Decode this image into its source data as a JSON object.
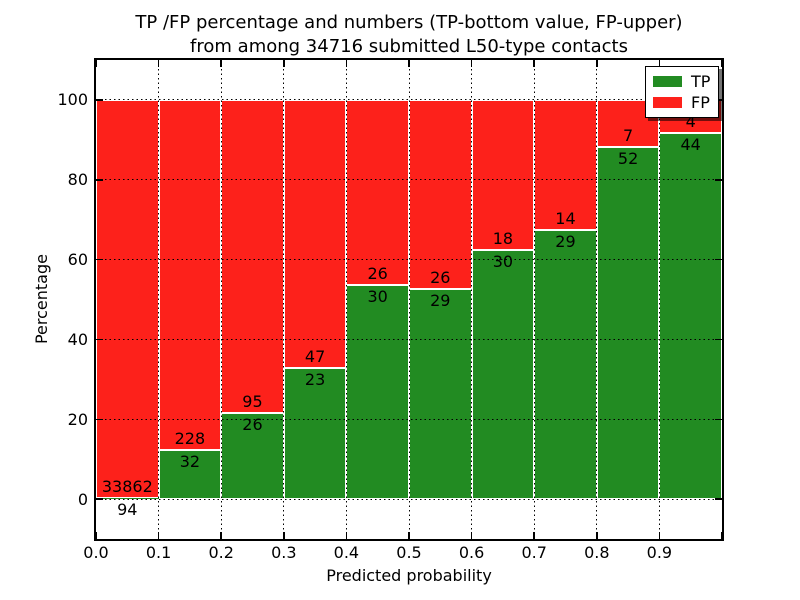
{
  "chart_data": {
    "type": "stacked_bar",
    "title_line1": "TP /FP percentage and numbers (TP-bottom value, FP-upper)",
    "title_line2": "from among 34716 submitted L50-type contacts",
    "total_submitted": 34716,
    "xlabel": "Predicted probability",
    "ylabel": "Percentage",
    "xlim": [
      0.0,
      1.0
    ],
    "ylim": [
      -10,
      110
    ],
    "stack_total_percent": 100,
    "bin_edges": [
      0.0,
      0.1,
      0.2,
      0.3,
      0.4,
      0.5,
      0.6,
      0.7,
      0.8,
      0.9,
      1.0
    ],
    "categories": [
      "0.0-0.1",
      "0.1-0.2",
      "0.2-0.3",
      "0.3-0.4",
      "0.4-0.5",
      "0.5-0.6",
      "0.6-0.7",
      "0.7-0.8",
      "0.8-0.9",
      "0.9-1.0"
    ],
    "series": [
      {
        "name": "TP",
        "color": "#228b22",
        "counts": [
          94,
          32,
          26,
          23,
          30,
          29,
          30,
          29,
          52,
          44
        ]
      },
      {
        "name": "FP",
        "color": "#fd211b",
        "counts": [
          33862,
          228,
          95,
          47,
          26,
          26,
          18,
          14,
          7,
          4
        ]
      }
    ],
    "tp_percentages": [
      0.28,
      12.31,
      21.49,
      32.86,
      53.57,
      52.73,
      62.5,
      67.44,
      88.14,
      91.67
    ],
    "x_ticks": [
      {
        "v": 0.0,
        "label": "0.0"
      },
      {
        "v": 0.1,
        "label": "0.1"
      },
      {
        "v": 0.2,
        "label": "0.2"
      },
      {
        "v": 0.3,
        "label": "0.3"
      },
      {
        "v": 0.4,
        "label": "0.4"
      },
      {
        "v": 0.5,
        "label": "0.5"
      },
      {
        "v": 0.6,
        "label": "0.6"
      },
      {
        "v": 0.7,
        "label": "0.7"
      },
      {
        "v": 0.8,
        "label": "0.8"
      },
      {
        "v": 0.9,
        "label": "0.9"
      }
    ],
    "y_ticks": [
      {
        "v": 0,
        "label": "0"
      },
      {
        "v": 20,
        "label": "20"
      },
      {
        "v": 40,
        "label": "40"
      },
      {
        "v": 60,
        "label": "60"
      },
      {
        "v": 80,
        "label": "80"
      },
      {
        "v": 100,
        "label": "100"
      }
    ],
    "x_gridlines": [
      0.1,
      0.2,
      0.3,
      0.4,
      0.5,
      0.6,
      0.7,
      0.8,
      0.9
    ],
    "y_gridlines": [
      0,
      20,
      40,
      60,
      80,
      100
    ],
    "grid_style": "dotted",
    "legend_position": "upper right"
  },
  "colors": {
    "tp_green": "#228b22",
    "fp_red": "#fd211b",
    "axis": "#000000",
    "grid": "#000000",
    "bar_edge": "#ffffff",
    "background": "#ffffff",
    "legend_background": "#ffffff"
  }
}
